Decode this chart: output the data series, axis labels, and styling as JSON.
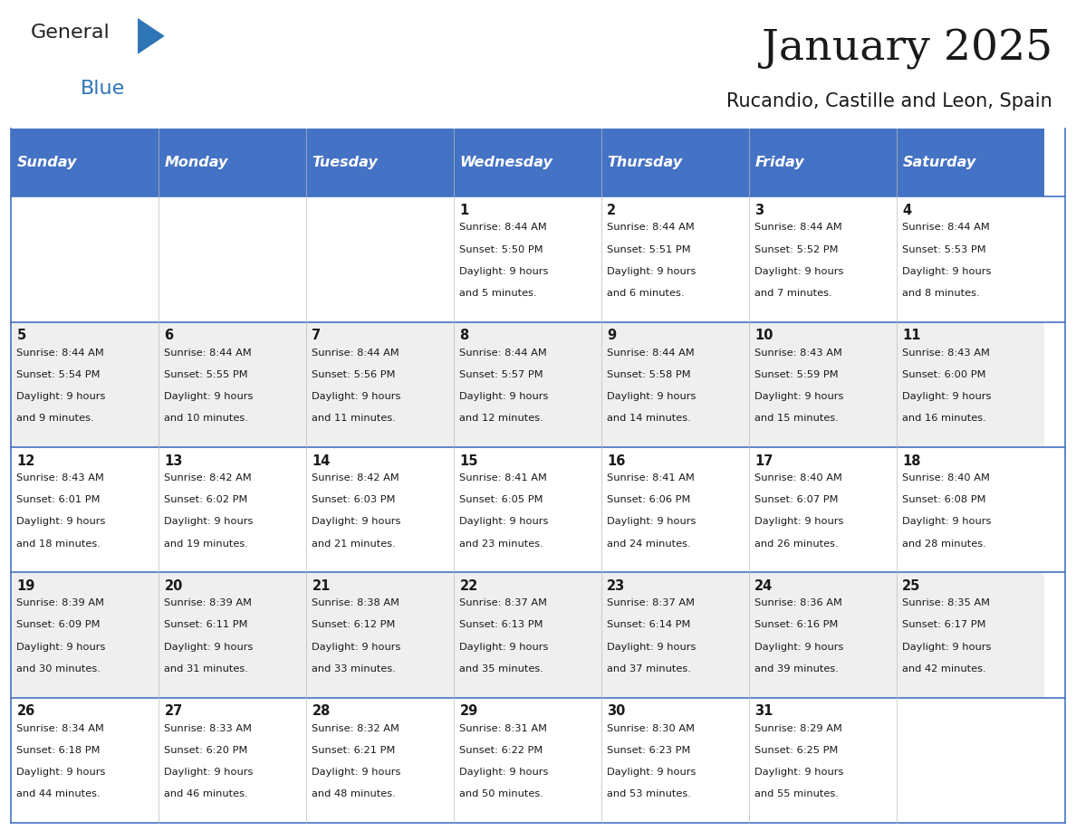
{
  "title": "January 2025",
  "subtitle": "Rucandio, Castille and Leon, Spain",
  "header_bg_color": "#4472C4",
  "header_text_color": "#FFFFFF",
  "row_bg_even": "#EFEFEF",
  "row_bg_odd": "#FFFFFF",
  "border_color": "#4472C4",
  "day_headers": [
    "Sunday",
    "Monday",
    "Tuesday",
    "Wednesday",
    "Thursday",
    "Friday",
    "Saturday"
  ],
  "calendar": [
    [
      {
        "day": "",
        "sunrise": "",
        "sunset": "",
        "daylight": ""
      },
      {
        "day": "",
        "sunrise": "",
        "sunset": "",
        "daylight": ""
      },
      {
        "day": "",
        "sunrise": "",
        "sunset": "",
        "daylight": ""
      },
      {
        "day": "1",
        "sunrise": "8:44 AM",
        "sunset": "5:50 PM",
        "daylight": "9 hours and 5 minutes."
      },
      {
        "day": "2",
        "sunrise": "8:44 AM",
        "sunset": "5:51 PM",
        "daylight": "9 hours and 6 minutes."
      },
      {
        "day": "3",
        "sunrise": "8:44 AM",
        "sunset": "5:52 PM",
        "daylight": "9 hours and 7 minutes."
      },
      {
        "day": "4",
        "sunrise": "8:44 AM",
        "sunset": "5:53 PM",
        "daylight": "9 hours and 8 minutes."
      }
    ],
    [
      {
        "day": "5",
        "sunrise": "8:44 AM",
        "sunset": "5:54 PM",
        "daylight": "9 hours and 9 minutes."
      },
      {
        "day": "6",
        "sunrise": "8:44 AM",
        "sunset": "5:55 PM",
        "daylight": "9 hours and 10 minutes."
      },
      {
        "day": "7",
        "sunrise": "8:44 AM",
        "sunset": "5:56 PM",
        "daylight": "9 hours and 11 minutes."
      },
      {
        "day": "8",
        "sunrise": "8:44 AM",
        "sunset": "5:57 PM",
        "daylight": "9 hours and 12 minutes."
      },
      {
        "day": "9",
        "sunrise": "8:44 AM",
        "sunset": "5:58 PM",
        "daylight": "9 hours and 14 minutes."
      },
      {
        "day": "10",
        "sunrise": "8:43 AM",
        "sunset": "5:59 PM",
        "daylight": "9 hours and 15 minutes."
      },
      {
        "day": "11",
        "sunrise": "8:43 AM",
        "sunset": "6:00 PM",
        "daylight": "9 hours and 16 minutes."
      }
    ],
    [
      {
        "day": "12",
        "sunrise": "8:43 AM",
        "sunset": "6:01 PM",
        "daylight": "9 hours and 18 minutes."
      },
      {
        "day": "13",
        "sunrise": "8:42 AM",
        "sunset": "6:02 PM",
        "daylight": "9 hours and 19 minutes."
      },
      {
        "day": "14",
        "sunrise": "8:42 AM",
        "sunset": "6:03 PM",
        "daylight": "9 hours and 21 minutes."
      },
      {
        "day": "15",
        "sunrise": "8:41 AM",
        "sunset": "6:05 PM",
        "daylight": "9 hours and 23 minutes."
      },
      {
        "day": "16",
        "sunrise": "8:41 AM",
        "sunset": "6:06 PM",
        "daylight": "9 hours and 24 minutes."
      },
      {
        "day": "17",
        "sunrise": "8:40 AM",
        "sunset": "6:07 PM",
        "daylight": "9 hours and 26 minutes."
      },
      {
        "day": "18",
        "sunrise": "8:40 AM",
        "sunset": "6:08 PM",
        "daylight": "9 hours and 28 minutes."
      }
    ],
    [
      {
        "day": "19",
        "sunrise": "8:39 AM",
        "sunset": "6:09 PM",
        "daylight": "9 hours and 30 minutes."
      },
      {
        "day": "20",
        "sunrise": "8:39 AM",
        "sunset": "6:11 PM",
        "daylight": "9 hours and 31 minutes."
      },
      {
        "day": "21",
        "sunrise": "8:38 AM",
        "sunset": "6:12 PM",
        "daylight": "9 hours and 33 minutes."
      },
      {
        "day": "22",
        "sunrise": "8:37 AM",
        "sunset": "6:13 PM",
        "daylight": "9 hours and 35 minutes."
      },
      {
        "day": "23",
        "sunrise": "8:37 AM",
        "sunset": "6:14 PM",
        "daylight": "9 hours and 37 minutes."
      },
      {
        "day": "24",
        "sunrise": "8:36 AM",
        "sunset": "6:16 PM",
        "daylight": "9 hours and 39 minutes."
      },
      {
        "day": "25",
        "sunrise": "8:35 AM",
        "sunset": "6:17 PM",
        "daylight": "9 hours and 42 minutes."
      }
    ],
    [
      {
        "day": "26",
        "sunrise": "8:34 AM",
        "sunset": "6:18 PM",
        "daylight": "9 hours and 44 minutes."
      },
      {
        "day": "27",
        "sunrise": "8:33 AM",
        "sunset": "6:20 PM",
        "daylight": "9 hours and 46 minutes."
      },
      {
        "day": "28",
        "sunrise": "8:32 AM",
        "sunset": "6:21 PM",
        "daylight": "9 hours and 48 minutes."
      },
      {
        "day": "29",
        "sunrise": "8:31 AM",
        "sunset": "6:22 PM",
        "daylight": "9 hours and 50 minutes."
      },
      {
        "day": "30",
        "sunrise": "8:30 AM",
        "sunset": "6:23 PM",
        "daylight": "9 hours and 53 minutes."
      },
      {
        "day": "31",
        "sunrise": "8:29 AM",
        "sunset": "6:25 PM",
        "daylight": "9 hours and 55 minutes."
      },
      {
        "day": "",
        "sunrise": "",
        "sunset": "",
        "daylight": ""
      }
    ]
  ],
  "logo_text_general": "General",
  "logo_text_blue": "Blue",
  "logo_blue_color": "#2E75B6",
  "logo_dark_color": "#222222",
  "fig_width": 11.88,
  "fig_height": 9.18,
  "fig_dpi": 100
}
